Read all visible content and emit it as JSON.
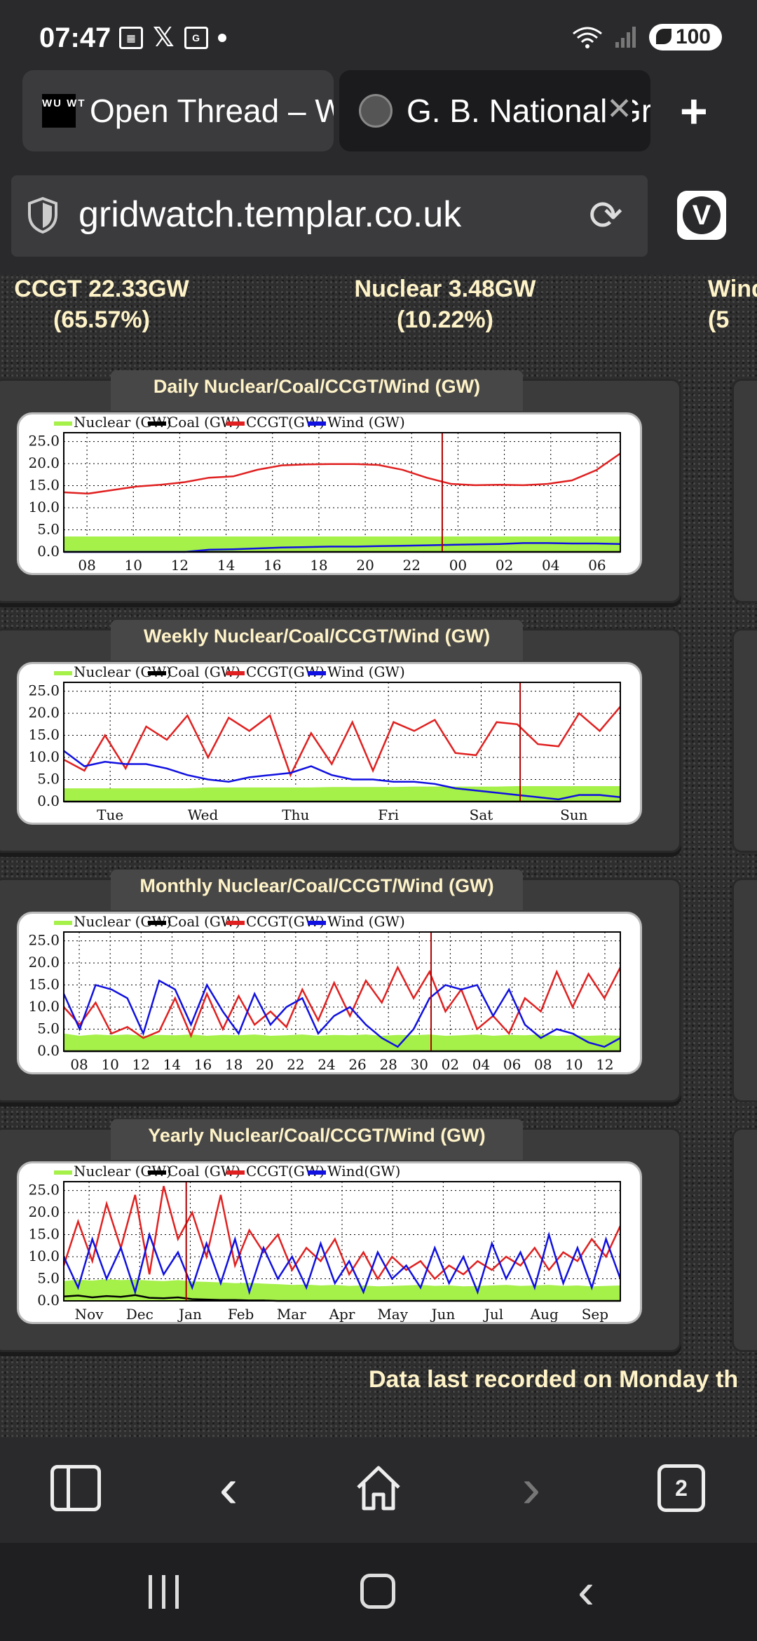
{
  "status_bar": {
    "time": "07:47",
    "battery": "100"
  },
  "tabs": [
    {
      "title": "Open Thread – WUWT",
      "favicon_text": "WU WT"
    },
    {
      "title": "G. B. National Grid Status"
    }
  ],
  "address": {
    "url": "gridwatch.templar.co.uk"
  },
  "stats": {
    "ccgt_line1": "CCGT 22.33GW",
    "ccgt_line2": "(65.57%)",
    "nuclear_line1": "Nuclear 3.48GW",
    "nuclear_line2": "(10.22%)",
    "wind_line1": "Wind",
    "wind_line2": "(5"
  },
  "colors": {
    "nuclear": "#a6f04a",
    "coal": "#000000",
    "ccgt": "#e02020",
    "wind": "#1010e0",
    "now_marker": "#b00000"
  },
  "chart_data": [
    {
      "type": "line",
      "title": "Daily Nuclear/Coal/CCGT/Wind (GW)",
      "legend": [
        "Nuclear (GW)",
        "Coal (GW)",
        "CCGT(GW)",
        "Wind (GW)"
      ],
      "x_ticks": [
        "08",
        "10",
        "12",
        "14",
        "16",
        "18",
        "20",
        "22",
        "00",
        "02",
        "04",
        "06"
      ],
      "y_ticks": [
        "0.0",
        "5.0",
        "10.0",
        "15.0",
        "20.0",
        "25.0"
      ],
      "ylim": [
        0,
        27
      ],
      "now_marker": 0.68,
      "series": [
        {
          "key": "nuclear",
          "values": [
            3.5,
            3.5,
            3.5,
            3.5,
            3.5,
            3.5,
            3.5,
            3.5,
            3.5,
            3.5,
            3.5,
            3.5,
            3.5,
            3.5,
            3.5,
            3.5,
            3.5,
            3.5,
            3.5,
            3.5,
            3.5,
            3.5,
            3.5,
            3.5
          ]
        },
        {
          "key": "coal",
          "values": [
            0,
            0,
            0,
            0,
            0,
            0,
            0,
            0,
            0,
            0,
            0,
            0,
            0,
            0,
            0,
            0,
            0,
            0,
            0,
            0,
            0,
            0,
            0,
            0
          ]
        },
        {
          "key": "ccgt",
          "values": [
            13.5,
            13.2,
            14.0,
            14.8,
            15.2,
            15.8,
            16.8,
            17.1,
            18.6,
            19.6,
            19.8,
            19.9,
            19.9,
            19.7,
            18.6,
            16.8,
            15.4,
            15.1,
            15.2,
            15.1,
            15.4,
            16.2,
            18.5,
            22.3
          ]
        },
        {
          "key": "wind",
          "values": [
            0.0,
            0.0,
            0.0,
            0.0,
            0.0,
            0.0,
            0.5,
            0.6,
            0.8,
            1.0,
            1.1,
            1.2,
            1.2,
            1.3,
            1.4,
            1.5,
            1.6,
            1.7,
            1.8,
            2.0,
            2.0,
            1.9,
            1.9,
            1.8
          ]
        }
      ]
    },
    {
      "type": "line",
      "title": "Weekly Nuclear/Coal/CCGT/Wind (GW)",
      "legend": [
        "Nuclear (GW)",
        "Coal (GW)",
        "CCGT(GW)",
        "Wind (GW)"
      ],
      "x_ticks": [
        "Tue",
        "Wed",
        "Thu",
        "Fri",
        "Sat",
        "Sun"
      ],
      "y_ticks": [
        "0.0",
        "5.0",
        "10.0",
        "15.0",
        "20.0",
        "25.0"
      ],
      "ylim": [
        0,
        27
      ],
      "now_marker": 0.82,
      "series": [
        {
          "key": "nuclear",
          "values": [
            3.0,
            3.0,
            3.0,
            3.0,
            3.0,
            3.0,
            3.0,
            3.2,
            3.2,
            3.2,
            3.2,
            3.2,
            3.2,
            3.3,
            3.3,
            3.3,
            3.3,
            3.4,
            3.4,
            3.4,
            3.4,
            3.4,
            3.5,
            3.5,
            3.5,
            3.5,
            3.5,
            3.5
          ]
        },
        {
          "key": "coal",
          "values": [
            0,
            0,
            0,
            0,
            0,
            0,
            0,
            0,
            0,
            0,
            0,
            0,
            0,
            0,
            0,
            0,
            0,
            0,
            0,
            0,
            0,
            0,
            0,
            0,
            0,
            0,
            0,
            0
          ]
        },
        {
          "key": "ccgt",
          "values": [
            9.5,
            7.0,
            15.0,
            7.5,
            17.0,
            14.0,
            19.5,
            10.0,
            19.0,
            16.0,
            19.5,
            6.0,
            15.5,
            8.5,
            18.0,
            7.0,
            18.0,
            16.0,
            18.5,
            11.0,
            10.5,
            18.0,
            17.5,
            13.0,
            12.5,
            20.0,
            16.0,
            21.5
          ]
        },
        {
          "key": "wind",
          "values": [
            11.5,
            8.0,
            9.0,
            8.5,
            8.5,
            7.5,
            6.0,
            5.0,
            4.5,
            5.5,
            6.0,
            6.5,
            8.0,
            6.0,
            5.0,
            5.0,
            4.5,
            4.5,
            4.0,
            3.0,
            2.5,
            2.0,
            1.5,
            1.0,
            0.5,
            1.5,
            1.5,
            1.0
          ]
        }
      ]
    },
    {
      "type": "line",
      "title": "Monthly Nuclear/Coal/CCGT/Wind (GW)",
      "legend": [
        "Nuclear (GW)",
        "Coal (GW)",
        "CCGT(GW)",
        "Wind (GW)"
      ],
      "x_ticks": [
        "08",
        "10",
        "12",
        "14",
        "16",
        "18",
        "20",
        "22",
        "24",
        "26",
        "28",
        "30",
        "02",
        "04",
        "06",
        "08",
        "10",
        "12"
      ],
      "y_ticks": [
        "0.0",
        "5.0",
        "10.0",
        "15.0",
        "20.0",
        "25.0"
      ],
      "ylim": [
        0,
        27
      ],
      "now_marker": 0.66,
      "series": [
        {
          "key": "nuclear",
          "values": [
            4.0,
            3.5,
            3.8,
            3.6,
            3.8,
            3.5,
            3.7,
            3.6,
            3.8,
            3.5,
            3.7,
            3.6,
            3.8,
            3.5,
            3.6,
            3.8,
            3.5,
            3.7,
            3.6,
            3.8,
            3.5,
            3.7,
            3.6,
            3.8,
            3.5,
            3.6,
            3.8,
            3.5,
            3.7,
            3.6,
            3.8,
            3.5,
            3.6,
            3.5,
            3.6,
            3.5
          ]
        },
        {
          "key": "coal",
          "values": [
            0,
            0,
            0,
            0,
            0,
            0,
            0,
            0,
            0,
            0,
            0,
            0,
            0,
            0,
            0,
            0,
            0,
            0,
            0,
            0,
            0,
            0,
            0,
            0,
            0,
            0,
            0,
            0,
            0,
            0,
            0,
            0,
            0,
            0,
            0,
            0
          ]
        },
        {
          "key": "ccgt",
          "values": [
            10.0,
            6.0,
            11.0,
            4.0,
            5.5,
            3.0,
            4.5,
            12.0,
            3.5,
            13.0,
            5.0,
            12.5,
            6.0,
            9.0,
            5.5,
            14.0,
            7.0,
            15.5,
            8.0,
            16.0,
            11.0,
            19.0,
            12.0,
            18.0,
            9.0,
            14.0,
            5.0,
            8.0,
            4.0,
            12.0,
            9.0,
            18.0,
            10.0,
            17.5,
            12.0,
            19.0
          ]
        },
        {
          "key": "wind",
          "values": [
            13.0,
            5.0,
            15.0,
            14.0,
            12.0,
            4.0,
            16.0,
            14.0,
            6.0,
            15.0,
            9.0,
            4.0,
            13.0,
            6.0,
            10.0,
            12.0,
            4.0,
            8.0,
            10.0,
            6.0,
            3.0,
            1.0,
            5.0,
            12.0,
            15.0,
            14.0,
            15.0,
            8.0,
            14.0,
            6.0,
            3.0,
            5.0,
            4.0,
            2.0,
            1.0,
            3.0
          ]
        }
      ]
    },
    {
      "type": "line",
      "title": "Yearly Nuclear/Coal/CCGT/Wind (GW)",
      "legend": [
        "Nuclear (GW)",
        "Coal (GW)",
        "CCGT(GW)",
        "Wind(GW)"
      ],
      "x_ticks": [
        "Nov",
        "Dec",
        "Jan",
        "Feb",
        "Mar",
        "Apr",
        "May",
        "Jun",
        "Jul",
        "Aug",
        "Sep"
      ],
      "y_ticks": [
        "0.0",
        "5.0",
        "10.0",
        "15.0",
        "20.0",
        "25.0"
      ],
      "ylim": [
        0,
        27
      ],
      "now_marker": 0.22,
      "series": [
        {
          "key": "nuclear",
          "values": [
            4.5,
            4.8,
            4.6,
            4.9,
            4.7,
            4.8,
            4.6,
            4.5,
            4.7,
            4.4,
            4.3,
            4.2,
            4.0,
            4.1,
            3.9,
            3.8,
            3.6,
            3.7,
            3.5,
            3.6,
            3.4,
            3.5,
            3.3,
            3.4,
            3.5,
            3.6,
            3.4,
            3.5,
            3.3,
            3.4,
            3.5,
            3.6,
            3.4,
            3.5,
            3.6,
            3.4,
            3.5,
            3.3,
            3.4,
            3.5
          ]
        },
        {
          "key": "coal",
          "values": [
            1.0,
            1.2,
            0.8,
            1.1,
            0.9,
            1.3,
            0.7,
            0.6,
            0.8,
            0.4,
            0.3,
            0.2,
            0.2,
            0.1,
            0.1,
            0.0,
            0.0,
            0.0,
            0.0,
            0.0,
            0.0,
            0.0,
            0.0,
            0.0,
            0.0,
            0.0,
            0.0,
            0.0,
            0.0,
            0.0,
            0.0,
            0.0,
            0.0,
            0.0,
            0.0,
            0.0,
            0.0,
            0.0,
            0.0,
            0.0
          ]
        },
        {
          "key": "ccgt",
          "values": [
            8.0,
            18.0,
            9.0,
            22.0,
            12.0,
            24.0,
            6.0,
            26.0,
            14.0,
            20.0,
            10.0,
            24.0,
            8.0,
            16.0,
            11.0,
            15.0,
            7.0,
            12.0,
            9.0,
            14.0,
            6.0,
            11.0,
            5.0,
            10.0,
            7.0,
            9.0,
            5.0,
            8.0,
            6.0,
            9.0,
            7.0,
            10.0,
            8.0,
            12.0,
            7.0,
            11.0,
            9.0,
            14.0,
            10.0,
            17.0
          ]
        },
        {
          "key": "wind",
          "values": [
            10.0,
            3.0,
            14.0,
            5.0,
            12.0,
            2.0,
            15.0,
            6.0,
            11.0,
            3.0,
            13.0,
            4.0,
            14.0,
            2.0,
            12.0,
            5.0,
            10.0,
            3.0,
            13.0,
            4.0,
            9.0,
            2.0,
            11.0,
            5.0,
            8.0,
            3.0,
            12.0,
            4.0,
            10.0,
            2.0,
            13.0,
            5.0,
            11.0,
            3.0,
            15.0,
            4.0,
            12.0,
            3.0,
            14.0,
            5.0
          ]
        }
      ]
    }
  ],
  "footer": {
    "note": "Data last recorded on Monday th"
  },
  "toolbar": {
    "tabs_count": "2"
  }
}
